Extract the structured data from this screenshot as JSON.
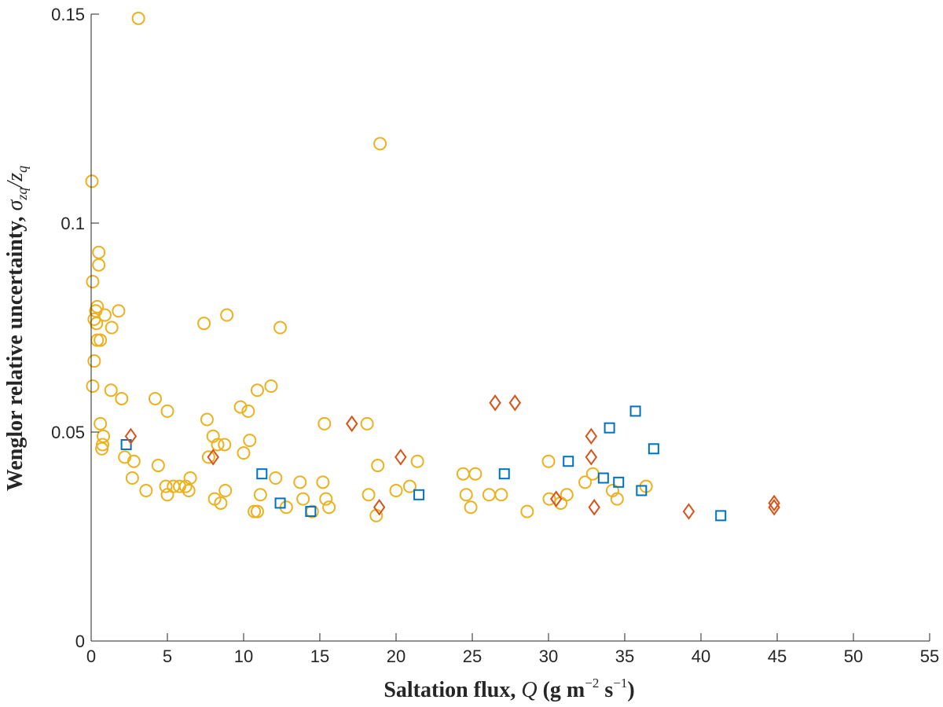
{
  "chart_data": {
    "type": "scatter",
    "title": "",
    "xlabel_parts": {
      "text": "Saltation flux, ",
      "sym": "Q",
      "unit": " (g m",
      "exp1": "−2",
      "mid": " s",
      "exp2": "−1",
      "end": ")"
    },
    "ylabel_parts": {
      "text": "Wenglor relative uncertainty, ",
      "sym": "σ",
      "sub1": "zq",
      "slash": "/",
      "sym2": "z",
      "sub2": "q"
    },
    "xlim": [
      0,
      55
    ],
    "ylim": [
      0,
      0.15
    ],
    "xticks": [
      0,
      5,
      10,
      15,
      20,
      25,
      30,
      35,
      40,
      45,
      50,
      55
    ],
    "xtick_labels": [
      "0",
      "5",
      "10",
      "15",
      "20",
      "25",
      "30",
      "35",
      "40",
      "45",
      "50",
      "55"
    ],
    "yticks": [
      0,
      0.05,
      0.1,
      0.15
    ],
    "ytick_labels": [
      "0",
      "0.05",
      "0.1",
      "0.15"
    ],
    "grid": false,
    "legend": "none",
    "series": [
      {
        "marker": "circle",
        "color": "#EDB120",
        "points": [
          [
            0.05,
            0.11
          ],
          [
            0.1,
            0.086
          ],
          [
            0.1,
            0.061
          ],
          [
            0.2,
            0.077
          ],
          [
            0.2,
            0.067
          ],
          [
            0.3,
            0.079
          ],
          [
            0.35,
            0.076
          ],
          [
            0.4,
            0.08
          ],
          [
            0.4,
            0.072
          ],
          [
            0.5,
            0.09
          ],
          [
            0.5,
            0.093
          ],
          [
            0.6,
            0.072
          ],
          [
            0.6,
            0.052
          ],
          [
            0.7,
            0.046
          ],
          [
            0.75,
            0.047
          ],
          [
            0.8,
            0.049
          ],
          [
            0.9,
            0.078
          ],
          [
            1.3,
            0.06
          ],
          [
            1.35,
            0.075
          ],
          [
            1.8,
            0.079
          ],
          [
            2.0,
            0.058
          ],
          [
            2.2,
            0.044
          ],
          [
            2.7,
            0.039
          ],
          [
            2.8,
            0.043
          ],
          [
            3.1,
            0.149
          ],
          [
            3.6,
            0.036
          ],
          [
            4.2,
            0.058
          ],
          [
            4.4,
            0.042
          ],
          [
            4.9,
            0.037
          ],
          [
            5.0,
            0.055
          ],
          [
            5.0,
            0.035
          ],
          [
            5.4,
            0.037
          ],
          [
            5.8,
            0.037
          ],
          [
            6.2,
            0.037
          ],
          [
            6.4,
            0.036
          ],
          [
            6.5,
            0.039
          ],
          [
            7.4,
            0.076
          ],
          [
            7.6,
            0.053
          ],
          [
            7.7,
            0.044
          ],
          [
            8.0,
            0.049
          ],
          [
            8.1,
            0.034
          ],
          [
            8.3,
            0.047
          ],
          [
            8.5,
            0.033
          ],
          [
            8.75,
            0.047
          ],
          [
            8.8,
            0.036
          ],
          [
            8.9,
            0.078
          ],
          [
            9.8,
            0.056
          ],
          [
            10.0,
            0.045
          ],
          [
            10.3,
            0.055
          ],
          [
            10.4,
            0.048
          ],
          [
            10.7,
            0.031
          ],
          [
            10.9,
            0.031
          ],
          [
            10.9,
            0.06
          ],
          [
            11.1,
            0.035
          ],
          [
            11.8,
            0.061
          ],
          [
            12.1,
            0.039
          ],
          [
            12.4,
            0.075
          ],
          [
            12.8,
            0.032
          ],
          [
            13.7,
            0.038
          ],
          [
            13.9,
            0.034
          ],
          [
            14.5,
            0.031
          ],
          [
            15.2,
            0.038
          ],
          [
            15.3,
            0.052
          ],
          [
            15.4,
            0.034
          ],
          [
            15.6,
            0.032
          ],
          [
            18.1,
            0.052
          ],
          [
            18.2,
            0.035
          ],
          [
            18.7,
            0.03
          ],
          [
            18.8,
            0.042
          ],
          [
            18.95,
            0.119
          ],
          [
            20.0,
            0.036
          ],
          [
            20.9,
            0.037
          ],
          [
            21.4,
            0.043
          ],
          [
            24.4,
            0.04
          ],
          [
            24.6,
            0.035
          ],
          [
            24.9,
            0.032
          ],
          [
            25.2,
            0.04
          ],
          [
            26.1,
            0.035
          ],
          [
            26.9,
            0.035
          ],
          [
            28.6,
            0.031
          ],
          [
            30.0,
            0.043
          ],
          [
            30.05,
            0.034
          ],
          [
            30.8,
            0.033
          ],
          [
            31.2,
            0.035
          ],
          [
            32.4,
            0.038
          ],
          [
            32.9,
            0.04
          ],
          [
            34.2,
            0.036
          ],
          [
            34.5,
            0.034
          ],
          [
            36.4,
            0.037
          ]
        ]
      },
      {
        "marker": "square",
        "color": "#0072BD",
        "points": [
          [
            2.3,
            0.047
          ],
          [
            11.2,
            0.04
          ],
          [
            12.4,
            0.033
          ],
          [
            14.4,
            0.031
          ],
          [
            21.5,
            0.035
          ],
          [
            27.1,
            0.04
          ],
          [
            31.3,
            0.043
          ],
          [
            33.6,
            0.039
          ],
          [
            34.0,
            0.051
          ],
          [
            34.6,
            0.038
          ],
          [
            35.7,
            0.055
          ],
          [
            36.1,
            0.036
          ],
          [
            36.9,
            0.046
          ],
          [
            41.3,
            0.03
          ]
        ]
      },
      {
        "marker": "diamond",
        "color": "#D95319",
        "points": [
          [
            2.6,
            0.049
          ],
          [
            8.0,
            0.044
          ],
          [
            17.1,
            0.052
          ],
          [
            18.9,
            0.032
          ],
          [
            20.3,
            0.044
          ],
          [
            26.5,
            0.057
          ],
          [
            27.8,
            0.057
          ],
          [
            30.5,
            0.034
          ],
          [
            32.8,
            0.049
          ],
          [
            32.8,
            0.044
          ],
          [
            33.0,
            0.032
          ],
          [
            39.2,
            0.031
          ],
          [
            44.8,
            0.032
          ],
          [
            44.8,
            0.033
          ]
        ]
      }
    ]
  }
}
